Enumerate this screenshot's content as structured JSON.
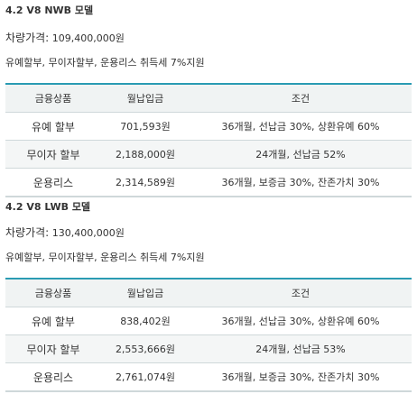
{
  "models": [
    {
      "title": "4.2 V8 NWB 모델",
      "price_label": "차량가격:",
      "price_value": "109,400,000원",
      "promo": "유예할부, 무이자할부, 운용리스 취득세 7%지원",
      "headers": [
        "금융상품",
        "월납입금",
        "조건"
      ],
      "rows": [
        {
          "product": "유예 할부",
          "monthly": "701,593원",
          "terms": "36개월, 선납금 30%, 상환유예 60%"
        },
        {
          "product": "무이자 할부",
          "monthly": "2,188,000원",
          "terms": "24개월, 선납금 52%"
        },
        {
          "product": "운용리스",
          "monthly": "2,314,589원",
          "terms": "36개월, 보증금 30%, 잔존가치 30%"
        }
      ]
    },
    {
      "title": "4.2 V8 LWB 모델",
      "price_label": "차량가격:",
      "price_value": "130,400,000원",
      "promo": "유예할부, 무이자할부, 운용리스 취득세 7%지원",
      "headers": [
        "금융상품",
        "월납입금",
        "조건"
      ],
      "rows": [
        {
          "product": "유예 할부",
          "monthly": "838,402원",
          "terms": "36개월, 선납금 30%, 상환유예 60%"
        },
        {
          "product": "무이자 할부",
          "monthly": "2,553,666원",
          "terms": "24개월, 선납금 53%"
        },
        {
          "product": "운용리스",
          "monthly": "2,761,074원",
          "terms": "36개월, 보증금 30%, 잔존가치 30%"
        }
      ]
    }
  ]
}
